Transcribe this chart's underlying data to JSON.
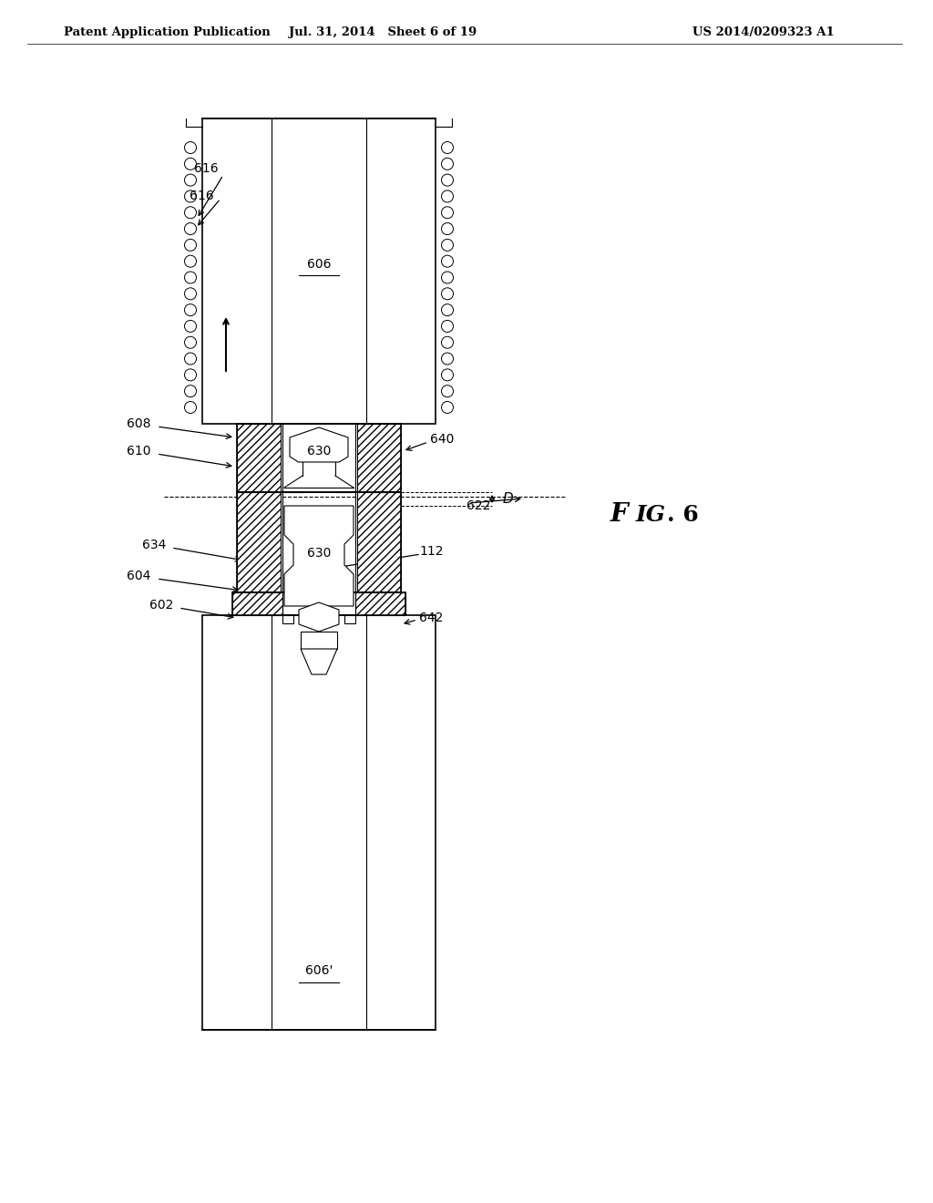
{
  "header_left": "Patent Application Publication",
  "header_center": "Jul. 31, 2014   Sheet 6 of 19",
  "header_right": "US 2014/0209323 A1",
  "fig_label": "FIG. 6",
  "background_color": "#ffffff"
}
